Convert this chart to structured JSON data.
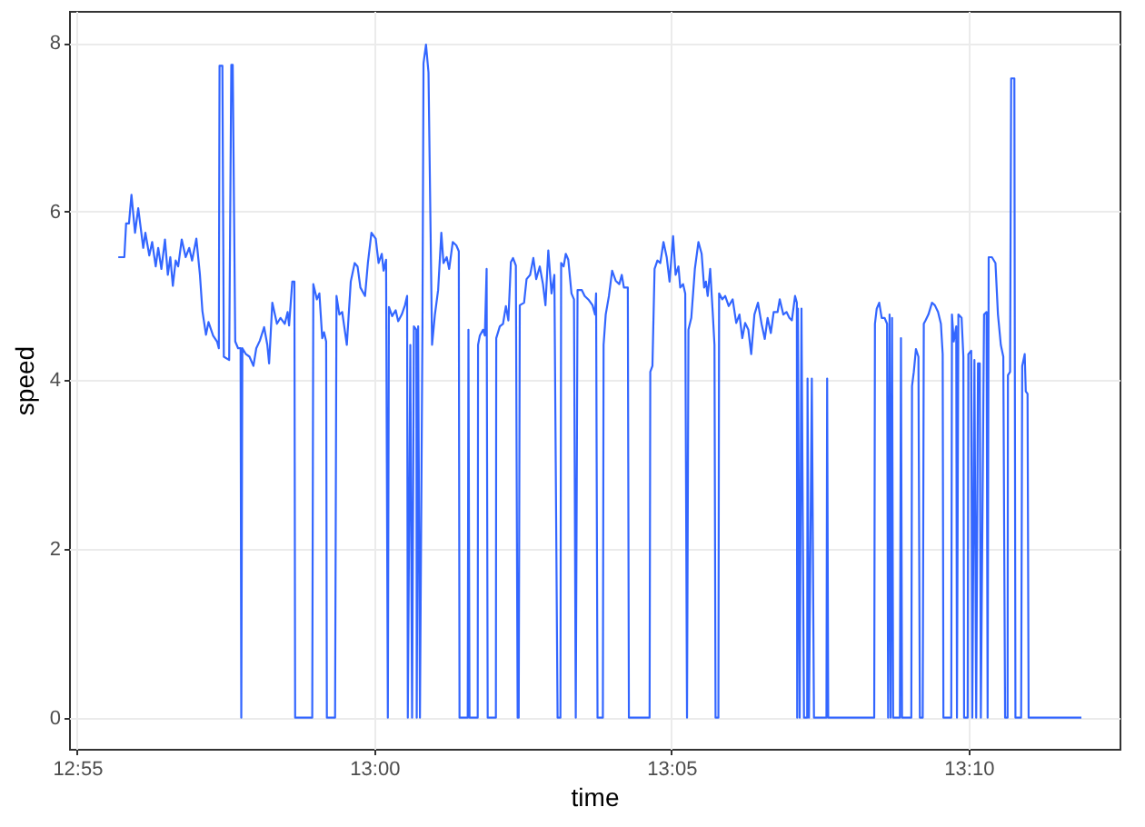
{
  "chart_data": {
    "type": "line",
    "xlabel": "time",
    "ylabel": "speed",
    "color": "#3366ff",
    "grid": true,
    "xlim": [
      12.9144,
      13.209
    ],
    "ylim": [
      -0.37,
      8.38
    ],
    "xticks": [
      {
        "value": 12.91667,
        "label": "12:55"
      },
      {
        "value": 13,
        "label": "13:00"
      },
      {
        "value": 13.08333,
        "label": "13:05"
      },
      {
        "value": 13.16667,
        "label": "13:10"
      }
    ],
    "yticks": [
      0,
      2,
      4,
      6,
      8
    ],
    "x": [
      12.9282,
      12.9299,
      12.9304,
      12.9312,
      12.9319,
      12.9329,
      12.9338,
      12.9352,
      12.9358,
      12.9369,
      12.9377,
      12.9387,
      12.9394,
      12.9403,
      12.9413,
      12.9421,
      12.9428,
      12.9435,
      12.9443,
      12.945,
      12.946,
      12.9471,
      12.9481,
      12.9489,
      12.9501,
      12.9511,
      12.9518,
      12.9528,
      12.9535,
      12.9548,
      12.9559,
      12.9564,
      12.9566,
      12.9574,
      12.9578,
      12.9593,
      12.9599,
      12.9603,
      12.961,
      12.9618,
      12.9625,
      12.9627,
      12.963,
      12.964,
      12.965,
      12.9661,
      12.9669,
      12.9679,
      12.9691,
      12.97,
      12.9705,
      12.9714,
      12.9727,
      12.9737,
      12.9749,
      12.9757,
      12.9761,
      12.977,
      12.9776,
      12.9778,
      12.9826,
      12.9829,
      12.9839,
      12.9846,
      12.9854,
      12.9859,
      12.9865,
      12.9867,
      12.989,
      12.9894,
      12.9902,
      12.991,
      12.9923,
      12.9934,
      12.9945,
      12.9953,
      12.9961,
      12.9974,
      12.9982,
      12.9992,
      13.0004,
      13.0012,
      13.0021,
      13.0026,
      13.0033,
      13.0038,
      13.0041,
      13.005,
      13.006,
      13.0067,
      13.0077,
      13.0086,
      13.0092,
      13.0094,
      13.0101,
      13.0106,
      13.0111,
      13.0118,
      13.0119,
      13.0123,
      13.0128,
      13.0135,
      13.0138,
      13.0145,
      13.0152,
      13.0162,
      13.017,
      13.0179,
      13.0188,
      13.0194,
      13.0203,
      13.021,
      13.022,
      13.023,
      13.0237,
      13.0239,
      13.0262,
      13.0264,
      13.0267,
      13.029,
      13.0291,
      13.0296,
      13.0305,
      13.031,
      13.0315,
      13.0318,
      13.0341,
      13.0342,
      13.0352,
      13.0361,
      13.0369,
      13.0376,
      13.0383,
      13.0389,
      13.0397,
      13.0402,
      13.0405,
      13.0408,
      13.042,
      13.0427,
      13.0437,
      13.0446,
      13.0454,
      13.0464,
      13.0473,
      13.048,
      13.0488,
      13.0497,
      13.0505,
      13.0514,
      13.0522,
      13.0524,
      13.0531,
      13.0537,
      13.0544,
      13.0553,
      13.056,
      13.0565,
      13.057,
      13.0582,
      13.059,
      13.0602,
      13.0612,
      13.0619,
      13.0622,
      13.0626,
      13.0641,
      13.0643,
      13.0649,
      13.0658,
      13.0667,
      13.0677,
      13.0687,
      13.0694,
      13.07,
      13.0711,
      13.0714,
      13.0772,
      13.0774,
      13.078,
      13.0786,
      13.0794,
      13.0802,
      13.0811,
      13.082,
      13.0828,
      13.0838,
      13.0845,
      13.0853,
      13.0858,
      13.0866,
      13.0872,
      13.0877,
      13.0881,
      13.0889,
      13.0899,
      13.0909,
      13.0918,
      13.0925,
      13.093,
      13.0935,
      13.0942,
      13.0949,
      13.0954,
      13.0957,
      13.0965,
      13.0967,
      13.0976,
      13.0984,
      13.0994,
      13.1005,
      13.1015,
      13.1024,
      13.1032,
      13.104,
      13.1049,
      13.1057,
      13.1066,
      13.1076,
      13.1086,
      13.1095,
      13.1103,
      13.1112,
      13.112,
      13.1131,
      13.1137,
      13.1147,
      13.1156,
      13.1164,
      13.1171,
      13.118,
      13.1185,
      13.1186,
      13.1188,
      13.1193,
      13.1198,
      13.1205,
      13.1214,
      13.1215,
      13.1219,
      13.1227,
      13.1233,
      13.1268,
      13.127,
      13.1273,
      13.1402,
      13.1404,
      13.1409,
      13.1416,
      13.1423,
      13.1431,
      13.1438,
      13.1441,
      13.1445,
      13.1448,
      13.1452,
      13.1455,
      13.1474,
      13.1477,
      13.148,
      13.1506,
      13.1508,
      13.1513,
      13.1519,
      13.1526,
      13.153,
      13.1538,
      13.1541,
      13.1546,
      13.1554,
      13.1564,
      13.1572,
      13.1581,
      13.1589,
      13.1594,
      13.1596,
      13.1618,
      13.162,
      13.1625,
      13.1632,
      13.1634,
      13.1638,
      13.1647,
      13.1652,
      13.1654,
      13.1664,
      13.1666,
      13.1674,
      13.1677,
      13.1683,
      13.1688,
      13.1693,
      13.1698,
      13.1701,
      13.171,
      13.1717,
      13.172,
      13.1723,
      13.1732,
      13.1742,
      13.1749,
      13.1757,
      13.1764,
      13.1769,
      13.1776,
      13.1777,
      13.1783,
      13.1786,
      13.1795,
      13.1798,
      13.1814,
      13.1817,
      13.1824,
      13.1827,
      13.1832,
      13.1835,
      13.1983
    ],
    "values": [
      5.46,
      5.46,
      5.86,
      5.86,
      6.2,
      5.75,
      6.04,
      5.57,
      5.75,
      5.48,
      5.64,
      5.35,
      5.57,
      5.32,
      5.67,
      5.25,
      5.46,
      5.12,
      5.42,
      5.35,
      5.67,
      5.46,
      5.57,
      5.42,
      5.68,
      5.25,
      4.82,
      4.54,
      4.69,
      4.53,
      4.46,
      4.38,
      7.73,
      7.73,
      4.28,
      4.24,
      7.74,
      7.74,
      4.46,
      4.38,
      4.38,
      0,
      4.38,
      4.31,
      4.28,
      4.17,
      4.38,
      4.47,
      4.63,
      4.42,
      4.2,
      4.92,
      4.67,
      4.74,
      4.67,
      4.81,
      4.65,
      5.17,
      5.17,
      0,
      0,
      5.14,
      4.96,
      5.03,
      4.5,
      4.57,
      4.46,
      0,
      0,
      5.0,
      4.78,
      4.81,
      4.42,
      5.17,
      5.39,
      5.35,
      5.1,
      5.0,
      5.39,
      5.75,
      5.68,
      5.39,
      5.5,
      5.3,
      5.43,
      0,
      4.87,
      4.76,
      4.83,
      4.7,
      4.78,
      4.89,
      5.0,
      0,
      4.42,
      0,
      4.64,
      4.6,
      0,
      4.64,
      0,
      4.6,
      7.76,
      7.98,
      7.65,
      4.42,
      4.78,
      5.07,
      5.75,
      5.39,
      5.46,
      5.32,
      5.64,
      5.6,
      5.53,
      0,
      0,
      4.6,
      0,
      0,
      4.42,
      4.53,
      4.6,
      4.53,
      5.32,
      0,
      0,
      4.5,
      4.64,
      4.67,
      4.88,
      4.71,
      5.4,
      5.45,
      5.36,
      0,
      0,
      4.89,
      4.92,
      5.2,
      5.25,
      5.45,
      5.2,
      5.35,
      5.14,
      4.89,
      5.54,
      5.03,
      5.25,
      0,
      0,
      5.39,
      5.35,
      5.5,
      5.43,
      5.03,
      4.96,
      0,
      5.07,
      5.07,
      5.0,
      4.95,
      4.89,
      4.78,
      5.03,
      0,
      0,
      4.42,
      4.78,
      5.0,
      5.3,
      5.18,
      5.14,
      5.25,
      5.1,
      5.1,
      0,
      0,
      4.1,
      4.17,
      5.32,
      5.42,
      5.39,
      5.64,
      5.46,
      5.17,
      5.71,
      5.25,
      5.35,
      5.1,
      5.14,
      5.03,
      0,
      4.6,
      4.74,
      5.32,
      5.64,
      5.5,
      5.1,
      5.17,
      5.0,
      5.32,
      4.81,
      4.42,
      0,
      0,
      5.03,
      4.96,
      5.0,
      4.88,
      4.96,
      4.68,
      4.78,
      4.5,
      4.68,
      4.6,
      4.31,
      4.78,
      4.92,
      4.67,
      4.49,
      4.74,
      4.56,
      4.81,
      4.81,
      4.96,
      4.78,
      4.81,
      4.74,
      4.71,
      5.0,
      4.92,
      0,
      4.85,
      0,
      4.85,
      0,
      0,
      4.02,
      0,
      4.02,
      0,
      0,
      4.02,
      0,
      0,
      4.67,
      4.85,
      4.92,
      4.74,
      4.74,
      4.67,
      0,
      4.78,
      0,
      4.74,
      0,
      0,
      4.5,
      0,
      0,
      3.93,
      4.1,
      4.37,
      4.28,
      0,
      0,
      4.67,
      4.71,
      4.78,
      4.92,
      4.89,
      4.81,
      4.67,
      4.31,
      0,
      0,
      4.78,
      4.46,
      4.64,
      0,
      4.78,
      4.74,
      4.28,
      0,
      0,
      4.31,
      4.35,
      0,
      4.24,
      0,
      4.2,
      4.2,
      0,
      4.78,
      4.81,
      0,
      5.46,
      5.46,
      5.39,
      4.78,
      4.42,
      4.28,
      0,
      0,
      4.06,
      4.1,
      7.58,
      7.58,
      0,
      0,
      4.17,
      4.31,
      3.87,
      3.84,
      0,
      0
    ]
  }
}
